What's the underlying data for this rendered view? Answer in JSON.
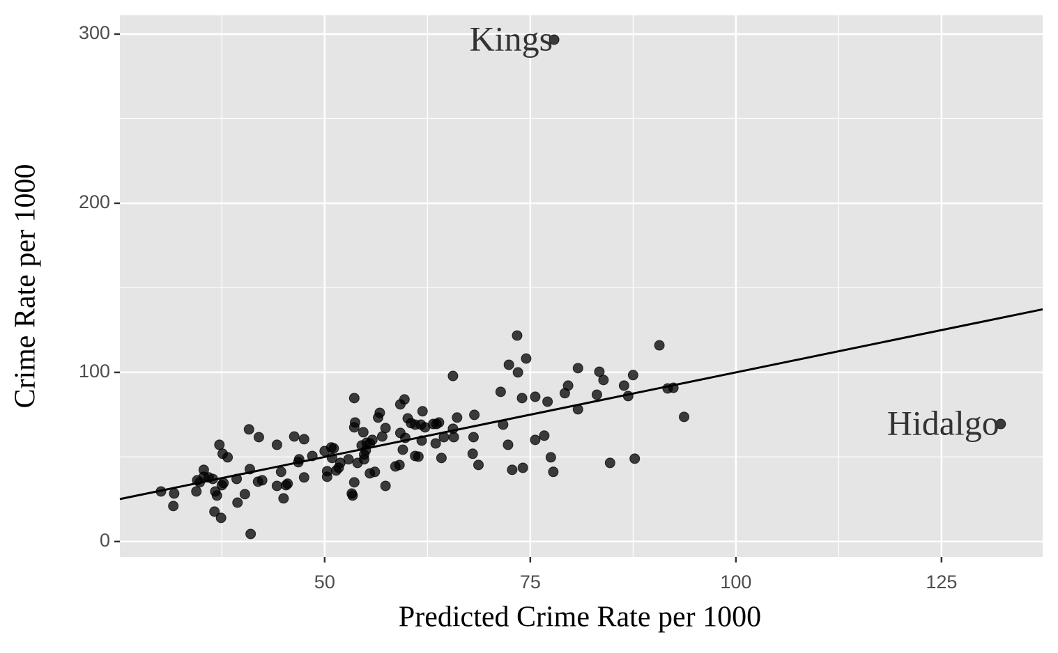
{
  "chart_data": {
    "type": "scatter",
    "xlabel": "Predicted Crime Rate per 1000",
    "ylabel": "Crime Rate per 1000",
    "x": [
      30.1,
      31.7,
      31.6,
      34.4,
      34.5,
      34.8,
      35.3,
      35.3,
      35.9,
      36.4,
      36.7,
      36.9,
      37.2,
      37.5,
      37.6,
      37.7,
      38.2,
      36.6,
      37.4,
      39.3,
      39.4,
      40.3,
      40.8,
      40.9,
      41.0,
      42.0,
      41.9,
      42.4,
      44.2,
      44.2,
      44.7,
      45.0,
      45.3,
      45.5,
      46.3,
      46.8,
      46.9,
      47.5,
      47.5,
      48.5,
      50.0,
      50.3,
      50.3,
      50.8,
      50.9,
      51.1,
      51.4,
      51.7,
      51.9,
      52.9,
      53.3,
      53.4,
      53.6,
      53.6,
      53.6,
      53.7,
      54.0,
      54.5,
      54.7,
      54.8,
      54.8,
      55.0,
      55.1,
      55.5,
      55.5,
      55.8,
      56.1,
      56.5,
      56.7,
      57.0,
      57.4,
      57.4,
      58.6,
      59.1,
      59.2,
      59.2,
      59.5,
      59.7,
      59.8,
      60.1,
      60.5,
      61.0,
      61.0,
      61.4,
      61.7,
      61.8,
      61.9,
      62.2,
      63.2,
      63.5,
      63.6,
      63.9,
      64.2,
      64.5,
      65.6,
      65.6,
      65.7,
      66.1,
      68.0,
      68.1,
      68.2,
      68.7,
      71.4,
      71.7,
      72.3,
      72.4,
      72.8,
      73.4,
      73.5,
      74.0,
      74.1,
      74.5,
      75.6,
      75.6,
      76.7,
      77.1,
      77.5,
      77.8,
      79.2,
      79.6,
      80.8,
      80.8,
      83.1,
      83.4,
      83.9,
      84.7,
      86.4,
      86.9,
      87.5,
      87.7,
      90.7,
      91.7,
      92.4,
      93.7,
      77.9,
      132.2
    ],
    "values": [
      29.6,
      28.4,
      21.0,
      29.6,
      36.2,
      35.0,
      42.4,
      38.3,
      37.9,
      37.0,
      29.6,
      27.2,
      57.2,
      33.3,
      51.9,
      34.6,
      49.8,
      17.7,
      14.0,
      37.0,
      23.0,
      28.0,
      66.3,
      42.8,
      4.5,
      61.7,
      35.4,
      36.2,
      57.2,
      32.9,
      41.2,
      25.5,
      33.3,
      34.2,
      62.1,
      46.9,
      48.6,
      60.5,
      37.9,
      50.6,
      53.5,
      38.3,
      41.6,
      55.6,
      49.4,
      55.1,
      42.0,
      43.6,
      46.5,
      48.6,
      28.4,
      27.2,
      35.0,
      84.8,
      67.5,
      70.4,
      46.5,
      56.8,
      64.6,
      48.6,
      51.4,
      53.9,
      58.4,
      58.0,
      40.3,
      60.1,
      41.2,
      73.3,
      76.1,
      62.1,
      67.1,
      32.9,
      44.4,
      45.3,
      81.1,
      64.2,
      54.3,
      84.0,
      61.3,
      72.8,
      70.0,
      69.1,
      50.6,
      50.2,
      69.1,
      59.7,
      77.0,
      67.5,
      69.5,
      58.0,
      69.5,
      70.4,
      49.4,
      61.7,
      97.9,
      66.7,
      61.7,
      73.3,
      51.9,
      61.7,
      74.9,
      45.3,
      88.5,
      69.1,
      57.2,
      104.5,
      42.4,
      121.8,
      100.0,
      84.8,
      43.6,
      108.2,
      85.6,
      60.1,
      62.6,
      82.7,
      49.8,
      41.2,
      87.7,
      92.2,
      78.2,
      102.5,
      86.8,
      100.4,
      95.5,
      46.5,
      92.2,
      86.0,
      98.4,
      49.0,
      116.0,
      90.5,
      90.9,
      73.7,
      296.7,
      69.5
    ],
    "color": "#000000",
    "xlim": [
      25.1,
      137.3
    ],
    "ylim": [
      -9.1,
      311.1
    ],
    "xticks": [
      50,
      75,
      100,
      125
    ],
    "yticks": [
      0,
      100,
      200,
      300
    ],
    "xminor": [
      37.5,
      62.5,
      87.5,
      112.5
    ],
    "yminor": [
      50,
      150,
      250
    ],
    "grid": true,
    "reference_line": {
      "slope": 1,
      "intercept": 0
    },
    "annotations": [
      {
        "text": "Kings",
        "x": 77.9,
        "y": 296.7
      },
      {
        "text": "Hidalgo",
        "x": 132.2,
        "y": 69.5
      }
    ]
  }
}
